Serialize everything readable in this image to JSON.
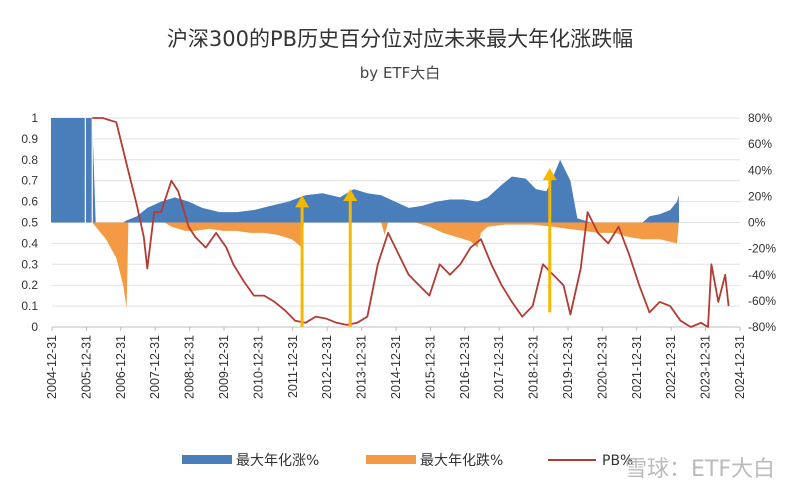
{
  "chart_data": {
    "type": "area",
    "title": "沪深300的PB历史百分位对应未来最大年化涨跌幅",
    "subtitle": "by ETF大白",
    "x_tick_labels": [
      "2004-12-31",
      "2005-12-31",
      "2006-12-31",
      "2007-12-31",
      "2008-12-31",
      "2009-12-31",
      "2010-12-31",
      "2011-12-31",
      "2012-12-31",
      "2013-12-31",
      "2014-12-31",
      "2015-12-31",
      "2016-12-31",
      "2017-12-31",
      "2018-12-31",
      "2019-12-31",
      "2020-12-31",
      "2021-12-31",
      "2022-12-31",
      "2023-12-31",
      "2024-12-31"
    ],
    "y_left_ticks": [
      "0",
      "0.1",
      "0.2",
      "0.3",
      "0.4",
      "0.5",
      "0.6",
      "0.7",
      "0.8",
      "0.9",
      "1"
    ],
    "y_right_ticks": [
      "-80%",
      "-60%",
      "-40%",
      "-20%",
      "0%",
      "20%",
      "40%",
      "60%",
      "80%"
    ],
    "ylim_left": [
      0,
      1
    ],
    "ylim_right": [
      -80,
      80
    ],
    "legend_position": "bottom",
    "series": [
      {
        "name": "最大年化涨%",
        "axis": "left",
        "color": "#4a7ebb",
        "points": [
          [
            2004.8,
            1
          ],
          [
            2006.0,
            1
          ],
          [
            2006.1,
            0.5
          ],
          [
            2006.9,
            0.5
          ],
          [
            2007.0,
            0.51
          ],
          [
            2007.3,
            0.53
          ],
          [
            2007.6,
            0.57
          ],
          [
            2008.0,
            0.6
          ],
          [
            2008.4,
            0.62
          ],
          [
            2008.8,
            0.6
          ],
          [
            2009.2,
            0.57
          ],
          [
            2009.7,
            0.55
          ],
          [
            2010.2,
            0.55
          ],
          [
            2010.7,
            0.56
          ],
          [
            2011.2,
            0.58
          ],
          [
            2011.7,
            0.6
          ],
          [
            2012.2,
            0.63
          ],
          [
            2012.7,
            0.64
          ],
          [
            2013.2,
            0.62
          ],
          [
            2013.6,
            0.66
          ],
          [
            2014.0,
            0.64
          ],
          [
            2014.4,
            0.63
          ],
          [
            2014.8,
            0.6
          ],
          [
            2015.2,
            0.57
          ],
          [
            2015.6,
            0.58
          ],
          [
            2016.0,
            0.6
          ],
          [
            2016.4,
            0.61
          ],
          [
            2016.8,
            0.61
          ],
          [
            2017.2,
            0.6
          ],
          [
            2017.5,
            0.62
          ],
          [
            2017.9,
            0.68
          ],
          [
            2018.2,
            0.72
          ],
          [
            2018.6,
            0.71
          ],
          [
            2018.9,
            0.66
          ],
          [
            2019.2,
            0.65
          ],
          [
            2019.4,
            0.72
          ],
          [
            2019.6,
            0.8
          ],
          [
            2019.9,
            0.7
          ],
          [
            2020.1,
            0.52
          ],
          [
            2020.5,
            0.5
          ],
          [
            2022.0,
            0.5
          ],
          [
            2022.2,
            0.53
          ],
          [
            2022.5,
            0.54
          ],
          [
            2022.8,
            0.56
          ],
          [
            2023.0,
            0.6
          ],
          [
            2023.05,
            0.63
          ],
          [
            2023.06,
            0.5
          ]
        ]
      },
      {
        "name": "最大年化跌%",
        "axis": "left",
        "color": "#f59a44",
        "points": [
          [
            2006.0,
            0.5
          ],
          [
            2006.1,
            0.48
          ],
          [
            2006.4,
            0.42
          ],
          [
            2006.7,
            0.33
          ],
          [
            2006.9,
            0.2
          ],
          [
            2007.0,
            0.09
          ],
          [
            2007.05,
            0.5
          ],
          [
            2008.1,
            0.5
          ],
          [
            2008.3,
            0.48
          ],
          [
            2008.7,
            0.46
          ],
          [
            2009.0,
            0.46
          ],
          [
            2009.4,
            0.47
          ],
          [
            2009.8,
            0.46
          ],
          [
            2010.2,
            0.46
          ],
          [
            2010.6,
            0.45
          ],
          [
            2011.0,
            0.45
          ],
          [
            2011.4,
            0.44
          ],
          [
            2011.8,
            0.42
          ],
          [
            2012.1,
            0.38
          ],
          [
            2012.15,
            0.5
          ],
          [
            2014.4,
            0.5
          ],
          [
            2014.5,
            0.44
          ],
          [
            2014.6,
            0.5
          ],
          [
            2015.4,
            0.5
          ],
          [
            2015.8,
            0.48
          ],
          [
            2016.2,
            0.45
          ],
          [
            2016.6,
            0.43
          ],
          [
            2017.0,
            0.41
          ],
          [
            2017.2,
            0.38
          ],
          [
            2017.3,
            0.45
          ],
          [
            2017.5,
            0.48
          ],
          [
            2018.0,
            0.49
          ],
          [
            2018.8,
            0.49
          ],
          [
            2019.4,
            0.48
          ],
          [
            2019.8,
            0.47
          ],
          [
            2020.3,
            0.46
          ],
          [
            2020.7,
            0.45
          ],
          [
            2021.2,
            0.45
          ],
          [
            2021.6,
            0.43
          ],
          [
            2022.0,
            0.42
          ],
          [
            2022.5,
            0.42
          ],
          [
            2023.0,
            0.4
          ],
          [
            2023.05,
            0.5
          ]
        ]
      },
      {
        "name": "PB%",
        "axis": "left",
        "color": "#b23b33",
        "points": [
          [
            2006.0,
            1
          ],
          [
            2006.3,
            1
          ],
          [
            2006.7,
            0.98
          ],
          [
            2007.0,
            0.78
          ],
          [
            2007.3,
            0.58
          ],
          [
            2007.5,
            0.43
          ],
          [
            2007.6,
            0.28
          ],
          [
            2007.8,
            0.55
          ],
          [
            2008.0,
            0.55
          ],
          [
            2008.3,
            0.7
          ],
          [
            2008.5,
            0.65
          ],
          [
            2008.8,
            0.48
          ],
          [
            2009.0,
            0.43
          ],
          [
            2009.3,
            0.38
          ],
          [
            2009.6,
            0.45
          ],
          [
            2009.9,
            0.38
          ],
          [
            2010.1,
            0.3
          ],
          [
            2010.4,
            0.22
          ],
          [
            2010.7,
            0.15
          ],
          [
            2011.0,
            0.15
          ],
          [
            2011.3,
            0.12
          ],
          [
            2011.6,
            0.08
          ],
          [
            2011.9,
            0.03
          ],
          [
            2012.2,
            0.02
          ],
          [
            2012.5,
            0.05
          ],
          [
            2012.8,
            0.04
          ],
          [
            2013.1,
            0.02
          ],
          [
            2013.4,
            0.01
          ],
          [
            2013.7,
            0.02
          ],
          [
            2014.0,
            0.05
          ],
          [
            2014.3,
            0.3
          ],
          [
            2014.6,
            0.45
          ],
          [
            2014.9,
            0.35
          ],
          [
            2015.2,
            0.25
          ],
          [
            2015.5,
            0.2
          ],
          [
            2015.8,
            0.15
          ],
          [
            2016.1,
            0.3
          ],
          [
            2016.4,
            0.25
          ],
          [
            2016.7,
            0.3
          ],
          [
            2017.0,
            0.38
          ],
          [
            2017.3,
            0.42
          ],
          [
            2017.6,
            0.3
          ],
          [
            2017.9,
            0.2
          ],
          [
            2018.2,
            0.12
          ],
          [
            2018.5,
            0.05
          ],
          [
            2018.8,
            0.1
          ],
          [
            2019.1,
            0.3
          ],
          [
            2019.4,
            0.25
          ],
          [
            2019.7,
            0.2
          ],
          [
            2019.9,
            0.06
          ],
          [
            2020.2,
            0.28
          ],
          [
            2020.4,
            0.55
          ],
          [
            2020.7,
            0.45
          ],
          [
            2021.0,
            0.4
          ],
          [
            2021.3,
            0.48
          ],
          [
            2021.6,
            0.35
          ],
          [
            2021.9,
            0.2
          ],
          [
            2022.2,
            0.07
          ],
          [
            2022.5,
            0.12
          ],
          [
            2022.8,
            0.1
          ],
          [
            2023.1,
            0.03
          ],
          [
            2023.4,
            0.0
          ],
          [
            2023.7,
            0.02
          ],
          [
            2023.9,
            0.0
          ],
          [
            2024.0,
            0.3
          ],
          [
            2024.2,
            0.12
          ],
          [
            2024.4,
            0.25
          ],
          [
            2024.5,
            0.1
          ]
        ]
      }
    ],
    "annotations": [
      {
        "type": "arrow",
        "color": "#f5b800",
        "x": 2012.1,
        "from": 0.0,
        "to": 0.63
      },
      {
        "type": "arrow",
        "color": "#f5b800",
        "x": 2013.5,
        "from": 0.0,
        "to": 0.66
      },
      {
        "type": "arrow",
        "color": "#f5b800",
        "x": 2019.3,
        "from": 0.07,
        "to": 0.76
      }
    ]
  },
  "watermark": "雪球：ETF大白"
}
